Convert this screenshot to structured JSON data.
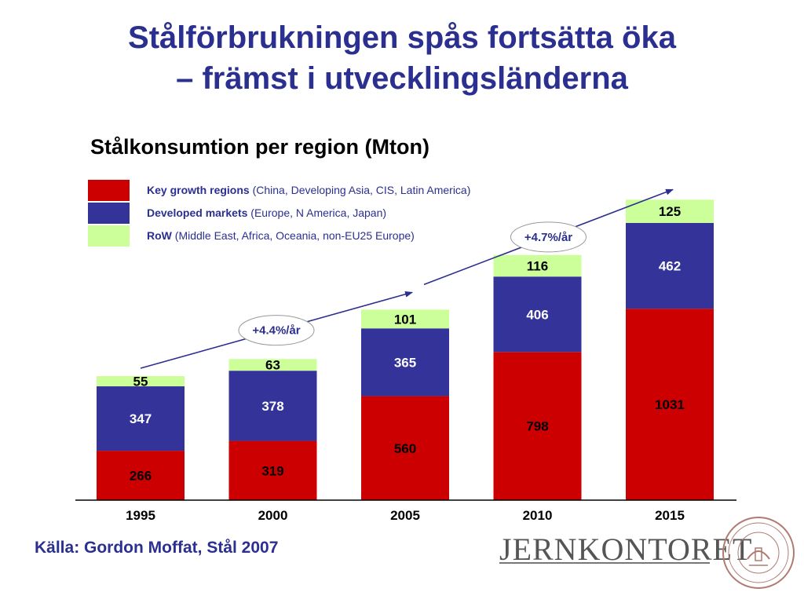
{
  "title": {
    "line1": "Stålförbrukningen spås fortsätta öka",
    "line2": "– främst i utvecklingsländerna"
  },
  "subtitle": "Stålkonsumtion per region (Mton)",
  "legend": [
    {
      "name": "Key growth regions",
      "desc": " (China, Developing Asia, CIS, Latin America)",
      "color": "#cc0000"
    },
    {
      "name": "Developed markets",
      "desc": " (Europe, N America, Japan)",
      "color": "#33339a"
    },
    {
      "name": "RoW",
      "desc": " (Middle East, Africa, Oceania, non-EU25 Europe)",
      "color": "#ccff99"
    }
  ],
  "chart_data": {
    "type": "bar",
    "stacked": true,
    "categories": [
      "1995",
      "2000",
      "2005",
      "2010",
      "2015"
    ],
    "series": [
      {
        "name": "Key growth regions",
        "values": [
          266,
          319,
          560,
          798,
          1031
        ],
        "color": "#cc0000"
      },
      {
        "name": "Developed markets",
        "values": [
          347,
          378,
          365,
          406,
          462
        ],
        "color": "#33339a"
      },
      {
        "name": "RoW",
        "values": [
          55,
          63,
          101,
          116,
          125
        ],
        "color": "#ccff99"
      }
    ],
    "annotations": [
      {
        "text": "+4.4%/år",
        "from": "1995",
        "to": "2005"
      },
      {
        "text": "+4.7%/år",
        "from": "2005",
        "to": "2015"
      }
    ]
  },
  "source": "Källa: Gordon Moffat, Stål 2007",
  "logo": "JERNKONTORET"
}
